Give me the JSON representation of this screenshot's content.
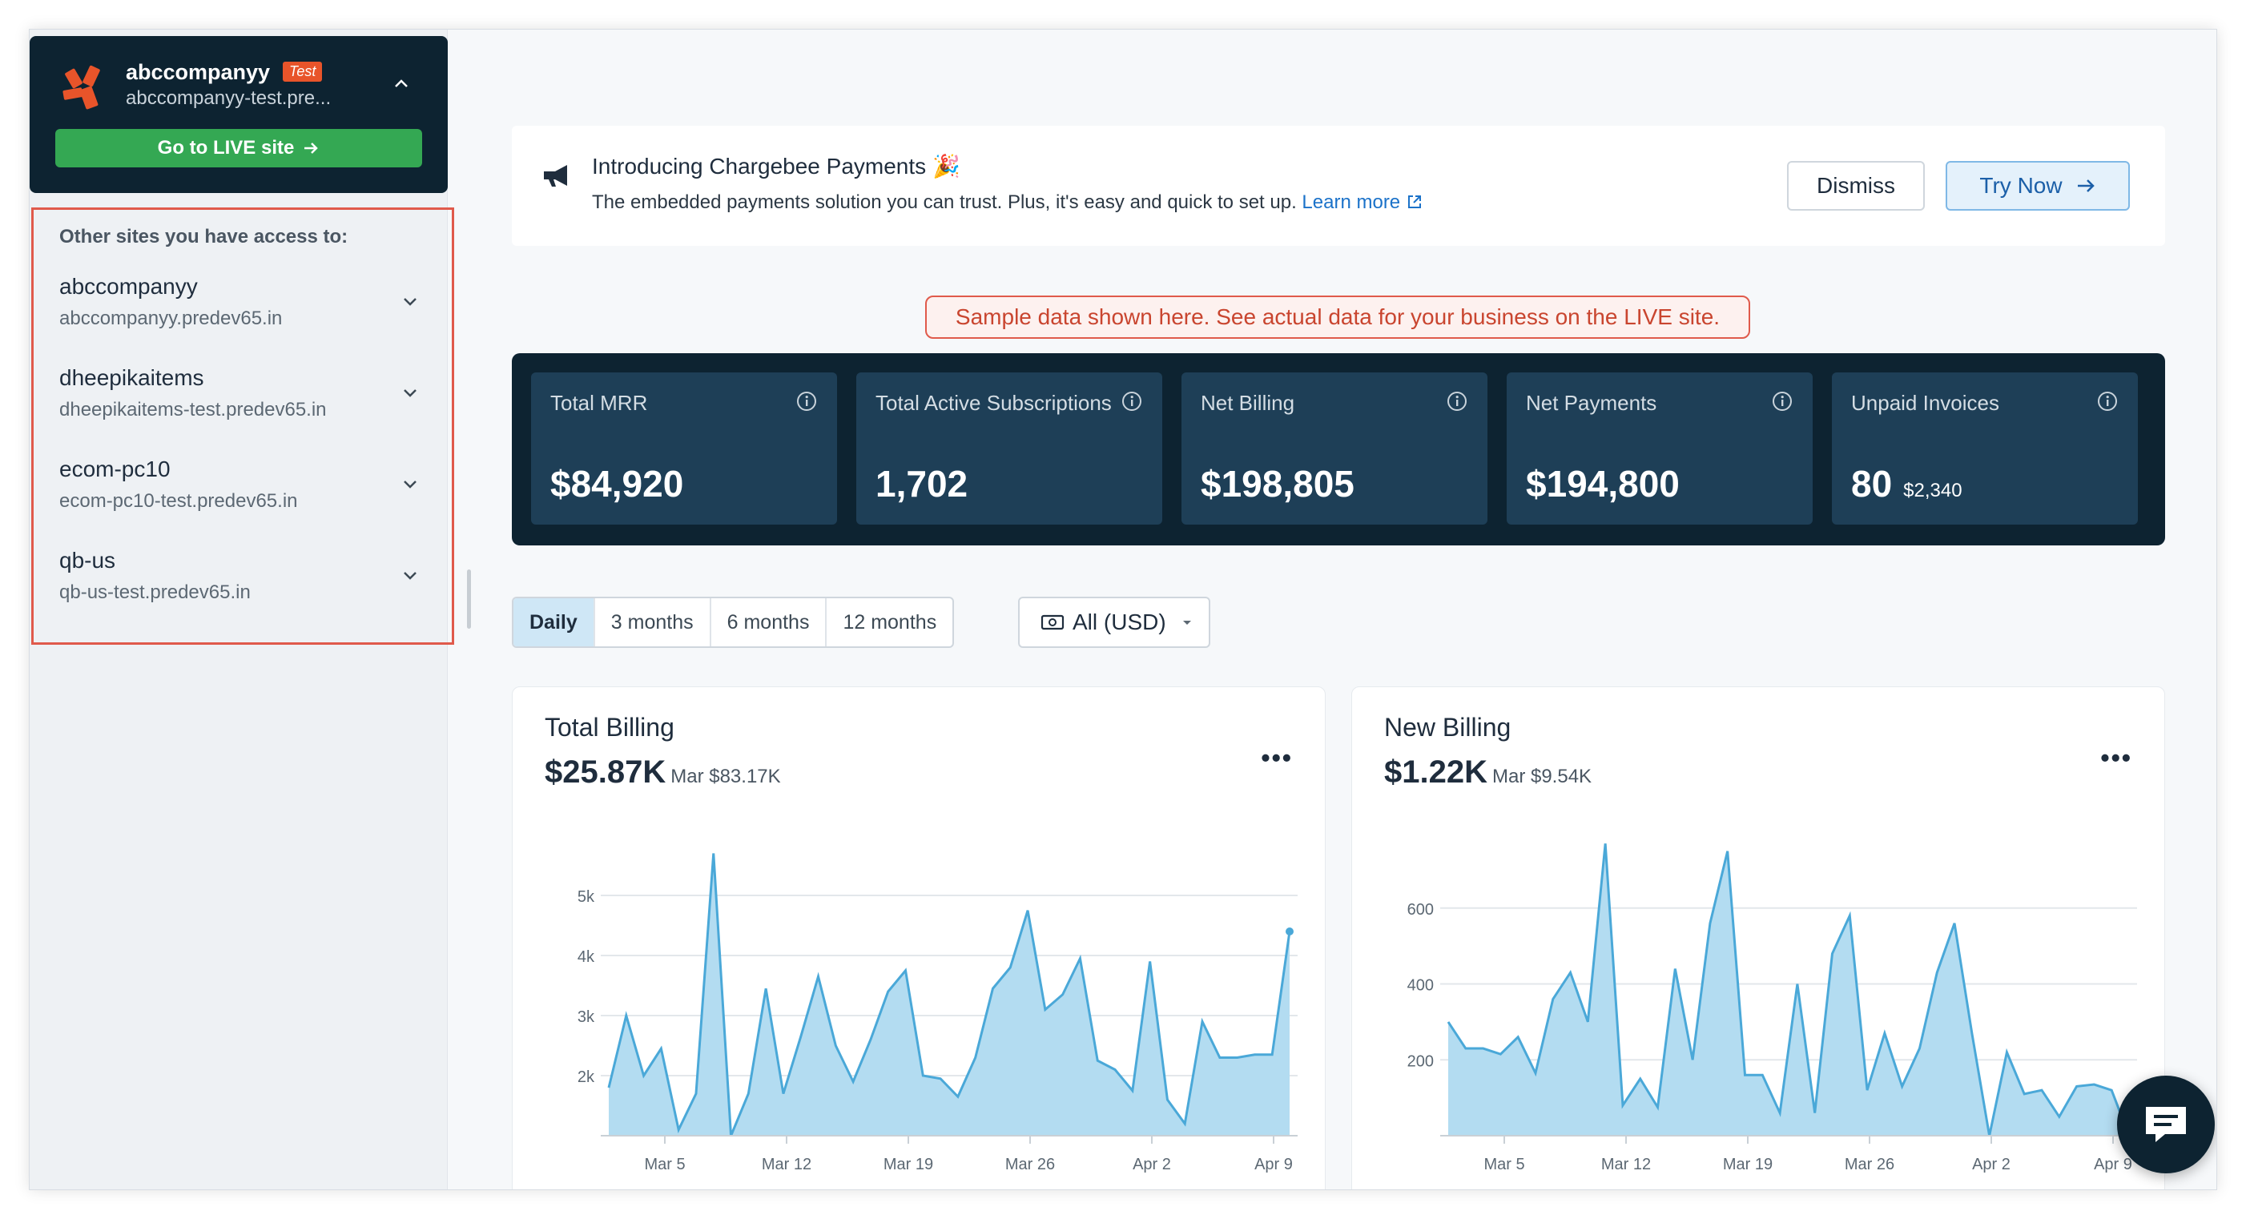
{
  "site": {
    "name": "abccompanyy",
    "badge": "Test",
    "url": "abccompanyy-test.pre...",
    "live_button": "Go to LIVE site",
    "logo_color": "#e8542a"
  },
  "access": {
    "title": "Other sites you have access to:",
    "sites": [
      {
        "name": "abccompanyy",
        "url": "abccompanyy.predev65.in"
      },
      {
        "name": "dheepikaitems",
        "url": "dheepikaitems-test.predev65.in"
      },
      {
        "name": "ecom-pc10",
        "url": "ecom-pc10-test.predev65.in"
      },
      {
        "name": "qb-us",
        "url": "qb-us-test.predev65.in"
      }
    ]
  },
  "announcement": {
    "title": "Introducing Chargebee Payments",
    "emoji": "🎉",
    "description": "The embedded payments solution you can trust. Plus, it's easy and quick to set up.",
    "link": "Learn more",
    "dismiss": "Dismiss",
    "try_now": "Try Now"
  },
  "sample_banner": "Sample data shown here. See actual data for your business on the LIVE site.",
  "metrics": [
    {
      "label": "Total MRR",
      "value": "$84,920",
      "sub": ""
    },
    {
      "label": "Total Active Subscriptions",
      "value": "1,702",
      "sub": ""
    },
    {
      "label": "Net Billing",
      "value": "$198,805",
      "sub": ""
    },
    {
      "label": "Net Payments",
      "value": "$194,800",
      "sub": ""
    },
    {
      "label": "Unpaid Invoices",
      "value": "80",
      "sub": "$2,340"
    }
  ],
  "filters": {
    "ranges": [
      "Daily",
      "3 months",
      "6 months",
      "12 months"
    ],
    "active": "Daily",
    "currency": "All (USD)"
  },
  "colors": {
    "dark": "#0d2331",
    "metric_card": "#1e3f57",
    "accent_green": "#34a853",
    "alert_red": "#e05a4b",
    "chart_line": "#4aa8d8",
    "chart_fill": "#b3dcf1"
  },
  "chart_data": [
    {
      "type": "area",
      "title": "Total Billing",
      "headline": "$25.87K",
      "comparison": "Mar $83.17K",
      "xlabel": "",
      "ylabel": "",
      "x_ticks": [
        "Mar 5",
        "Mar 12",
        "Mar 19",
        "Mar 26",
        "Apr 2",
        "Apr 9"
      ],
      "y_ticks": [
        "2k",
        "3k",
        "4k",
        "5k"
      ],
      "y_tick_values": [
        2000,
        3000,
        4000,
        5000
      ],
      "ylim": [
        1000,
        5800
      ],
      "values": [
        1800,
        3000,
        2000,
        2450,
        1100,
        1700,
        5700,
        1000,
        1700,
        3450,
        1700,
        2650,
        3650,
        2500,
        1900,
        2600,
        3400,
        3750,
        2000,
        1950,
        1650,
        2300,
        3450,
        3800,
        4750,
        3100,
        3350,
        3950,
        2250,
        2100,
        1750,
        3900,
        1600,
        1200,
        2900,
        2300,
        2300,
        2350,
        2350,
        4400
      ]
    },
    {
      "type": "area",
      "title": "New Billing",
      "headline": "$1.22K",
      "comparison": "Mar $9.54K",
      "xlabel": "",
      "ylabel": "",
      "x_ticks": [
        "Mar 5",
        "Mar 12",
        "Mar 19",
        "Mar 26",
        "Apr 2",
        "Apr 9"
      ],
      "y_ticks": [
        "200",
        "400",
        "600"
      ],
      "y_tick_values": [
        200,
        400,
        600
      ],
      "ylim": [
        0,
        760
      ],
      "values": [
        300,
        230,
        230,
        215,
        260,
        165,
        360,
        430,
        300,
        770,
        80,
        150,
        75,
        440,
        200,
        560,
        750,
        160,
        160,
        60,
        400,
        60,
        480,
        580,
        120,
        270,
        130,
        230,
        430,
        560,
        270,
        0,
        220,
        110,
        120,
        50,
        130,
        135,
        120,
        0
      ]
    }
  ]
}
